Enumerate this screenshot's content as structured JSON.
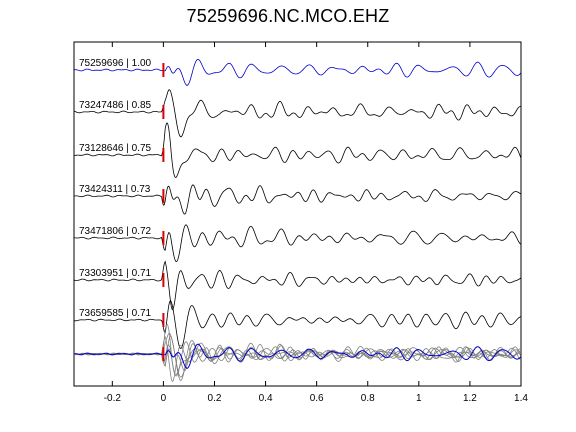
{
  "chart_data": {
    "type": "line",
    "title": "75259696.NC.MCO.EHZ",
    "xlabel": "",
    "ylabel": "",
    "xlim": [
      -0.35,
      1.4
    ],
    "xticks": [
      -0.2,
      0,
      0.2,
      0.4,
      0.6,
      0.8,
      1,
      1.2,
      1.4
    ],
    "xtick_labels": [
      "-0.2",
      "0",
      "0.2",
      "0.4",
      "0.6",
      "0.8",
      "1",
      "1.2",
      "1.4"
    ],
    "pick_marker_x": 0,
    "grid": false,
    "legend": "none",
    "colors": {
      "reference": "#0000cc",
      "trace": "#000000",
      "overlay": "#808080",
      "pick": "#dd0000"
    },
    "series": [
      {
        "label": "75259696 | 1.00",
        "event": "75259696",
        "cc": 1.0,
        "reference": true
      },
      {
        "label": "73247486 | 0.85",
        "event": "73247486",
        "cc": 0.85
      },
      {
        "label": "73128646 | 0.75",
        "event": "73128646",
        "cc": 0.75
      },
      {
        "label": "73424311 | 0.73",
        "event": "73424311",
        "cc": 0.73
      },
      {
        "label": "73471806 | 0.72",
        "event": "73471806",
        "cc": 0.72
      },
      {
        "label": "73303951 | 0.71",
        "event": "73303951",
        "cc": 0.71
      },
      {
        "label": "73659585 | 0.71",
        "event": "73659585",
        "cc": 0.71
      }
    ],
    "stack_panel": {
      "description_hidden": true
    }
  }
}
